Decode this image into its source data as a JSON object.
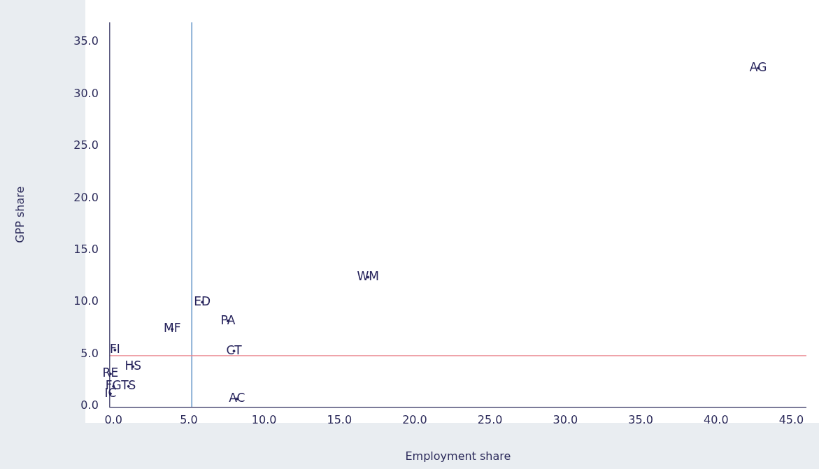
{
  "chart_data": {
    "type": "scatter",
    "xlabel": "Employment share",
    "ylabel": "GPP share",
    "marker": "circle",
    "grid": false,
    "legend": false,
    "xlim": [
      -0.25,
      46
    ],
    "ylim": [
      -0.1,
      36.9
    ],
    "xticks": [
      {
        "value": 0,
        "label": "0.0"
      },
      {
        "value": 5,
        "label": "5.0"
      },
      {
        "value": 10,
        "label": "10.0"
      },
      {
        "value": 15,
        "label": "15.0"
      },
      {
        "value": 20,
        "label": "20.0"
      },
      {
        "value": 25,
        "label": "25.0"
      },
      {
        "value": 30,
        "label": "30.0"
      },
      {
        "value": 35,
        "label": "35.0"
      },
      {
        "value": 40,
        "label": "40.0"
      },
      {
        "value": 45,
        "label": "45.0"
      }
    ],
    "yticks": [
      {
        "value": 0,
        "label": "0.0"
      },
      {
        "value": 5,
        "label": "5.0"
      },
      {
        "value": 10,
        "label": "10.0"
      },
      {
        "value": 15,
        "label": "15.0"
      },
      {
        "value": 20,
        "label": "20.0"
      },
      {
        "value": 25,
        "label": "25.0"
      },
      {
        "value": 30,
        "label": "30.0"
      },
      {
        "value": 35,
        "label": "35.0"
      }
    ],
    "ref_lines": [
      {
        "axis": "x",
        "value": 5.2,
        "color": "#3a78b8"
      },
      {
        "axis": "y",
        "value": 4.85,
        "color": "#e8808a"
      }
    ],
    "series": [
      {
        "type": "scatter",
        "color": "#24215a",
        "x": [
          42.8,
          16.9,
          5.9,
          7.6,
          3.9,
          0.1,
          8.0,
          1.3,
          -0.2,
          0.0,
          1.0,
          -0.2,
          8.2
        ],
        "values": [
          32.5,
          12.4,
          10.0,
          8.2,
          7.4,
          5.4,
          5.3,
          3.8,
          3.1,
          1.9,
          1.9,
          1.2,
          0.7
        ],
        "value_labels": [
          "AG",
          "WM",
          "ED",
          "PA",
          "MF",
          "FI",
          "CT",
          "HS",
          "RE",
          "FG",
          "TS",
          "IC",
          "AC"
        ]
      }
    ]
  }
}
